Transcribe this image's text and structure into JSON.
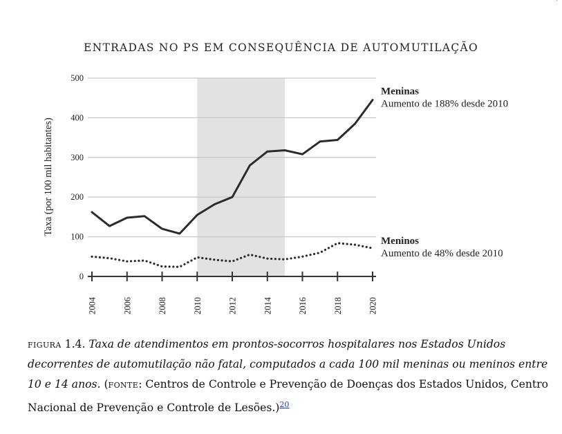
{
  "chart_data": {
    "type": "line",
    "title": "ENTRADAS NO PS EM CONSEQUÊNCIA DE AUTOMUTILAÇÃO",
    "ylabel": "Taxa (por 100 mil habitantes)",
    "xlabel": "",
    "ylim": [
      0,
      500
    ],
    "xlim": [
      2004,
      2020
    ],
    "yticks": [
      0,
      100,
      200,
      300,
      400,
      500
    ],
    "xticks": [
      2004,
      2006,
      2008,
      2010,
      2012,
      2014,
      2016,
      2018,
      2020
    ],
    "shaded_range": [
      2010,
      2015
    ],
    "grid": true,
    "x": [
      2004,
      2005,
      2006,
      2007,
      2008,
      2009,
      2010,
      2011,
      2012,
      2013,
      2014,
      2015,
      2016,
      2017,
      2018,
      2019,
      2020
    ],
    "series": [
      {
        "name": "Meninas",
        "annotation": "Aumento de 188% desde 2010",
        "style": "solid",
        "values": [
          162,
          127,
          148,
          152,
          120,
          108,
          155,
          182,
          200,
          280,
          315,
          318,
          308,
          340,
          344,
          385,
          445
        ]
      },
      {
        "name": "Meninos",
        "annotation": "Aumento de 48% desde 2010",
        "style": "dotted",
        "values": [
          50,
          46,
          38,
          40,
          25,
          24,
          48,
          42,
          38,
          55,
          45,
          43,
          50,
          60,
          84,
          80,
          71
        ]
      }
    ]
  },
  "caption": {
    "label": "figura",
    "number": "1.4.",
    "italic_text": "Taxa de atendimentos em prontos-socorros hospitalares nos Estados Unidos decorrentes de automutilação não fatal, computados a cada 100 mil meninas ou meninos entre 10 e 14 anos.",
    "source_open": "(",
    "source_label": "fonte",
    "source_text": ": Centros de Controle e Prevenção de Doenças dos Estados Unidos, Centro Nacional de Prevenção e Controle de Lesões.)",
    "note_ref": "20"
  },
  "colors": {
    "line": "#2b2b2b",
    "grid": "#c8c8c8",
    "shade": "#e2e2e2",
    "link": "#1a3cc8"
  }
}
